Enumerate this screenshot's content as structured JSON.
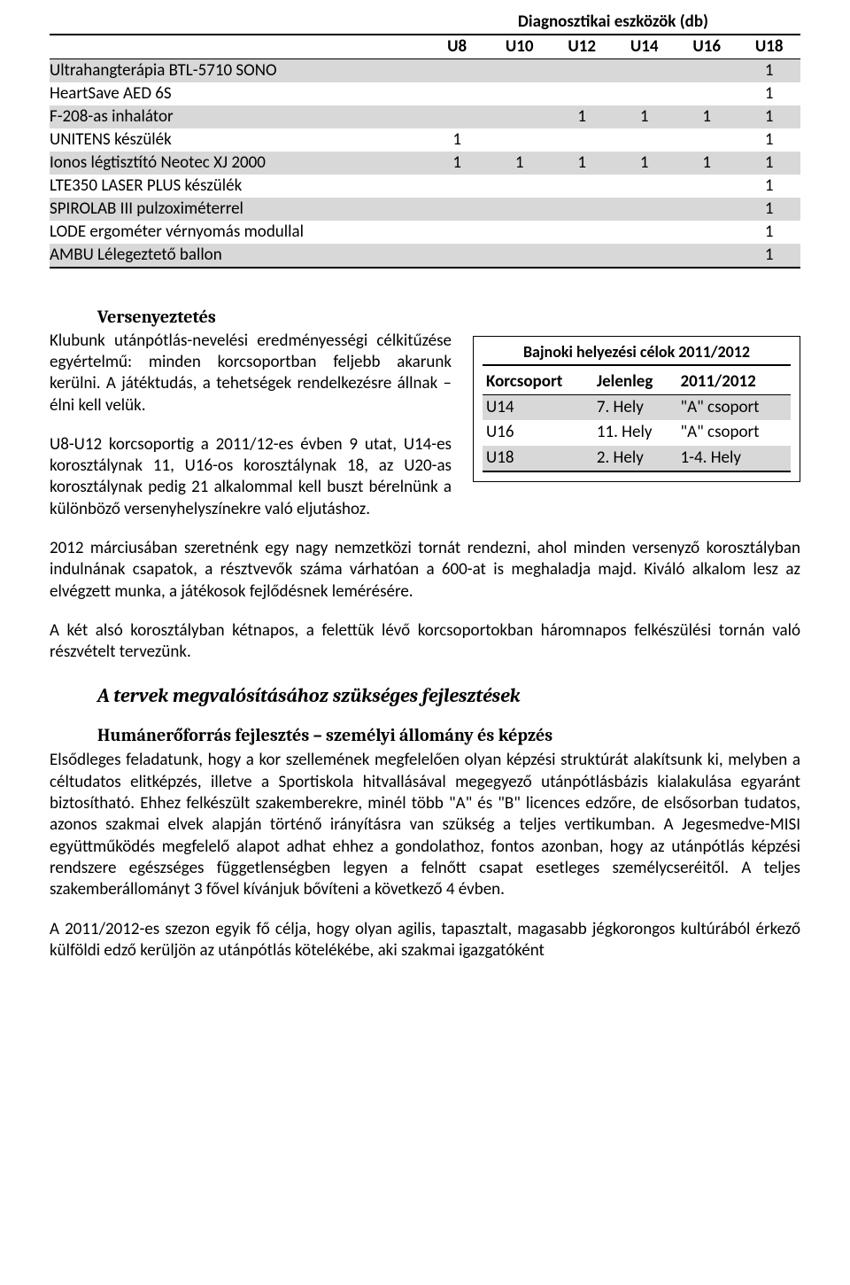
{
  "main_table": {
    "title": "Diagnosztikai eszközök (db)",
    "columns": [
      "U8",
      "U10",
      "U12",
      "U14",
      "U16",
      "U18"
    ],
    "rows": [
      {
        "label": "Ultrahangterápia BTL-5710 SONO",
        "cells": [
          "",
          "",
          "",
          "",
          "",
          "1"
        ],
        "alt": true
      },
      {
        "label": "HeartSave AED 6S",
        "cells": [
          "",
          "",
          "",
          "",
          "",
          "1"
        ],
        "alt": false
      },
      {
        "label": "F-208-as  inhalátor",
        "cells": [
          "",
          "",
          "1",
          "1",
          "1",
          "1"
        ],
        "alt": true
      },
      {
        "label": "UNITENS készülék",
        "cells": [
          "1",
          "",
          "",
          "",
          "",
          "1"
        ],
        "alt": false
      },
      {
        "label": "Ionos légtisztító Neotec XJ 2000",
        "cells": [
          "1",
          "1",
          "1",
          "1",
          "1",
          "1"
        ],
        "alt": true
      },
      {
        "label": "LTE350 LASER PLUS készülék",
        "cells": [
          "",
          "",
          "",
          "",
          "",
          "1"
        ],
        "alt": false
      },
      {
        "label": "SPIROLAB III pulzoximéterrel",
        "cells": [
          "",
          "",
          "",
          "",
          "",
          "1"
        ],
        "alt": true
      },
      {
        "label": "LODE ergométer vérnyomás modullal",
        "cells": [
          "",
          "",
          "",
          "",
          "",
          "1"
        ],
        "alt": false
      },
      {
        "label": "AMBU Lélegeztető ballon",
        "cells": [
          "",
          "",
          "",
          "",
          "",
          "1"
        ],
        "alt": true
      }
    ]
  },
  "side_box": {
    "title": "Bajnoki helyezési célok 2011/2012",
    "columns": [
      "Korcsoport",
      "Jelenleg",
      "2011/2012"
    ],
    "rows": [
      {
        "c1": "U14",
        "c2": "7. Hely",
        "c3": "\"A\" csoport",
        "alt": true
      },
      {
        "c1": "U16",
        "c2": "11. Hely",
        "c3": "\"A\" csoport",
        "alt": false
      },
      {
        "c1": "U18",
        "c2": "2. Hely",
        "c3": "1-4. Hely",
        "alt": true
      }
    ]
  },
  "headings": {
    "versenyeztetes": "Versenyeztetés",
    "tervek": "A tervek megvalósításához szükséges fejlesztések",
    "human": "Humánerőforrás fejlesztés – személyi állomány és képzés"
  },
  "paragraphs": {
    "p1": "Klubunk utánpótlás-nevelési eredményességi célkitűzése egyértelmű: minden korcsoportban feljebb akarunk kerülni. A játéktudás, a tehetségek rendelkezésre állnak – élni kell velük.",
    "p2": "U8-U12 korcsoportig a 2011/12-es évben 9 utat, U14-es korosztálynak 11, U16-os korosztálynak 18, az U20-as korosztálynak pedig 21 alkalommal kell buszt bérelnünk a különböző versenyhelyszínekre való eljutáshoz.",
    "p3": "2012 márciusában szeretnénk egy nagy nemzetközi tornát rendezni, ahol minden versenyző korosztályban indulnának csapatok, a résztvevők száma várhatóan a 600-at is meghaladja majd. Kiváló alkalom lesz az elvégzett munka, a játékosok fejlődésnek lemérésére.",
    "p4": "A két alsó korosztályban kétnapos, a felettük lévő korcsoportokban háromnapos felkészülési tornán való részvételt tervezünk.",
    "p5": "Elsődleges feladatunk, hogy a kor szellemének megfelelően olyan képzési struktúrát alakítsunk ki, melyben a céltudatos elitképzés, illetve a Sportiskola hitvallásával megegyező utánpótlásbázis kialakulása egyaránt biztosítható. Ehhez felkészült szakemberekre, minél több \"A\" és \"B\" licences edzőre, de elsősorban tudatos, azonos szakmai elvek alapján történő  irányításra van szükség a teljes vertikumban. A Jegesmedve-MISI együttműködés megfelelő alapot adhat ehhez a gondolathoz, fontos azonban, hogy az utánpótlás képzési rendszere egészséges függetlenségben legyen a felnőtt csapat esetleges személycseréitől. A teljes szakemberállományt 3 fővel kívánjuk bővíteni a következő 4 évben.",
    "p6": "A 2011/2012-es szezon egyik fő célja, hogy olyan agilis, tapasztalt, magasabb jégkorongos kultúrából érkező külföldi edző kerüljön az utánpótlás kötelékébe, aki szakmai igazgatóként"
  }
}
